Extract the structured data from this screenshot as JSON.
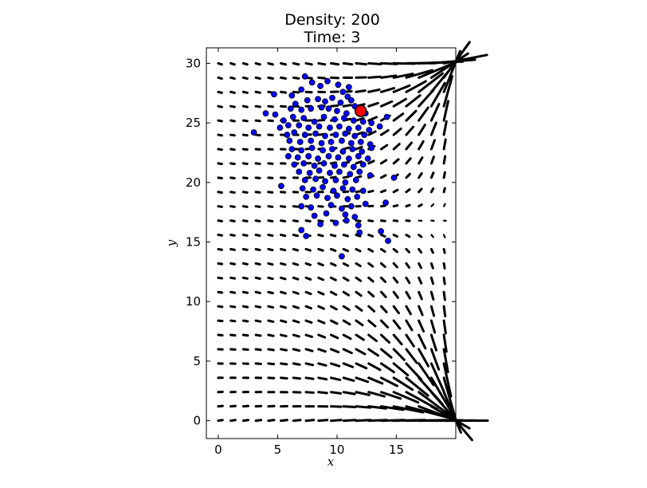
{
  "chart_data": {
    "type": "scatter",
    "title_lines": [
      "Density: 200",
      "Time: 3"
    ],
    "xlabel": "x",
    "ylabel": "y",
    "xlim": [
      -1,
      20
    ],
    "ylim": [
      -1.5,
      31.3
    ],
    "xticks": [
      0,
      5,
      10,
      15
    ],
    "yticks": [
      0,
      5,
      10,
      15,
      20,
      25,
      30
    ],
    "grid": false,
    "vector_field": {
      "description": "quiver field toward target point",
      "x_range": [
        0,
        19
      ],
      "y_range": [
        0,
        30
      ],
      "nx": 19,
      "ny": 26,
      "color": "#000000"
    },
    "series": [
      {
        "marker_color": "#0000ff",
        "edge_color": "#000000",
        "points": [
          [
            7.3,
            28.9
          ],
          [
            7.9,
            28.4
          ],
          [
            8.6,
            28.1
          ],
          [
            9.2,
            28.5
          ],
          [
            10.1,
            28.2
          ],
          [
            11.0,
            28.0
          ],
          [
            4.7,
            27.4
          ],
          [
            6.2,
            27.3
          ],
          [
            7.0,
            27.8
          ],
          [
            10.5,
            27.6
          ],
          [
            10.9,
            27.2
          ],
          [
            6.5,
            26.6
          ],
          [
            7.5,
            26.9
          ],
          [
            8.4,
            27.0
          ],
          [
            9.0,
            26.8
          ],
          [
            9.6,
            27.1
          ],
          [
            10.3,
            26.7
          ],
          [
            11.2,
            26.9
          ],
          [
            11.5,
            26.4
          ],
          [
            4.0,
            25.8
          ],
          [
            4.8,
            25.7
          ],
          [
            6.1,
            26.2
          ],
          [
            7.0,
            26.1
          ],
          [
            7.8,
            26.2
          ],
          [
            8.7,
            26.3
          ],
          [
            9.3,
            26.2
          ],
          [
            10.0,
            26.0
          ],
          [
            10.8,
            25.8
          ],
          [
            12.4,
            25.8
          ],
          [
            5.5,
            25.2
          ],
          [
            6.3,
            25.5
          ],
          [
            7.2,
            25.4
          ],
          [
            8.1,
            25.1
          ],
          [
            8.9,
            25.5
          ],
          [
            9.8,
            25.3
          ],
          [
            10.6,
            25.4
          ],
          [
            11.4,
            25.2
          ],
          [
            12.2,
            25.1
          ],
          [
            12.9,
            25.0
          ],
          [
            5.2,
            24.6
          ],
          [
            5.9,
            24.8
          ],
          [
            6.8,
            24.8
          ],
          [
            7.6,
            24.6
          ],
          [
            8.5,
            24.7
          ],
          [
            9.4,
            24.6
          ],
          [
            10.2,
            24.7
          ],
          [
            11.0,
            24.5
          ],
          [
            11.8,
            24.6
          ],
          [
            12.7,
            24.4
          ],
          [
            13.6,
            24.7
          ],
          [
            14.2,
            25.5
          ],
          [
            3.0,
            24.2
          ],
          [
            5.8,
            24.0
          ],
          [
            6.4,
            24.2
          ],
          [
            7.3,
            24.0
          ],
          [
            8.2,
            24.1
          ],
          [
            9.0,
            23.9
          ],
          [
            9.9,
            24.0
          ],
          [
            10.7,
            24.1
          ],
          [
            11.5,
            23.9
          ],
          [
            12.3,
            24.0
          ],
          [
            6.0,
            23.5
          ],
          [
            6.9,
            23.4
          ],
          [
            7.8,
            23.5
          ],
          [
            8.7,
            23.3
          ],
          [
            9.5,
            23.4
          ],
          [
            10.4,
            23.5
          ],
          [
            11.2,
            23.3
          ],
          [
            12.0,
            23.4
          ],
          [
            12.8,
            23.2
          ],
          [
            6.2,
            22.8
          ],
          [
            7.0,
            22.7
          ],
          [
            7.9,
            22.9
          ],
          [
            8.8,
            22.7
          ],
          [
            9.6,
            22.8
          ],
          [
            10.5,
            22.6
          ],
          [
            11.3,
            22.8
          ],
          [
            12.1,
            22.6
          ],
          [
            12.9,
            22.9
          ],
          [
            5.9,
            22.2
          ],
          [
            6.7,
            22.1
          ],
          [
            7.6,
            22.2
          ],
          [
            8.4,
            22.0
          ],
          [
            9.3,
            22.2
          ],
          [
            10.1,
            22.1
          ],
          [
            11.0,
            22.0
          ],
          [
            11.8,
            22.2
          ],
          [
            12.6,
            22.0
          ],
          [
            6.4,
            21.5
          ],
          [
            7.2,
            21.6
          ],
          [
            8.1,
            21.4
          ],
          [
            8.9,
            21.6
          ],
          [
            9.8,
            21.4
          ],
          [
            10.6,
            21.5
          ],
          [
            11.4,
            21.3
          ],
          [
            12.2,
            21.5
          ],
          [
            6.8,
            20.9
          ],
          [
            7.7,
            20.8
          ],
          [
            8.5,
            21.0
          ],
          [
            9.4,
            20.8
          ],
          [
            10.2,
            20.9
          ],
          [
            11.1,
            20.7
          ],
          [
            11.9,
            20.9
          ],
          [
            12.8,
            20.6
          ],
          [
            14.8,
            20.4
          ],
          [
            7.3,
            20.2
          ],
          [
            8.2,
            20.3
          ],
          [
            9.0,
            20.1
          ],
          [
            9.9,
            20.2
          ],
          [
            10.7,
            20.0
          ],
          [
            11.6,
            20.2
          ],
          [
            5.3,
            19.7
          ],
          [
            7.1,
            19.5
          ],
          [
            8.0,
            19.4
          ],
          [
            8.8,
            19.6
          ],
          [
            9.7,
            19.3
          ],
          [
            10.5,
            19.5
          ],
          [
            11.3,
            19.4
          ],
          [
            12.2,
            19.3
          ],
          [
            7.4,
            18.8
          ],
          [
            8.3,
            18.9
          ],
          [
            9.2,
            18.7
          ],
          [
            10.0,
            18.9
          ],
          [
            10.9,
            18.6
          ],
          [
            11.7,
            18.8
          ],
          [
            14.1,
            18.3
          ],
          [
            7.0,
            18.0
          ],
          [
            7.8,
            17.9
          ],
          [
            9.5,
            18.1
          ],
          [
            10.4,
            17.8
          ],
          [
            11.2,
            18.0
          ],
          [
            12.4,
            18.2
          ],
          [
            8.1,
            17.2
          ],
          [
            9.1,
            17.4
          ],
          [
            10.7,
            17.3
          ],
          [
            11.5,
            17.1
          ],
          [
            8.6,
            16.5
          ],
          [
            9.9,
            16.6
          ],
          [
            10.8,
            16.8
          ],
          [
            11.8,
            16.4
          ],
          [
            7.0,
            16.0
          ],
          [
            7.4,
            15.5
          ],
          [
            11.9,
            15.8
          ],
          [
            13.7,
            15.9
          ],
          [
            14.3,
            15.1
          ],
          [
            10.4,
            13.8
          ]
        ]
      },
      {
        "marker_color": "#ff0000",
        "edge_color": "#000000",
        "points": [
          [
            12.0,
            26.0
          ]
        ]
      }
    ]
  }
}
